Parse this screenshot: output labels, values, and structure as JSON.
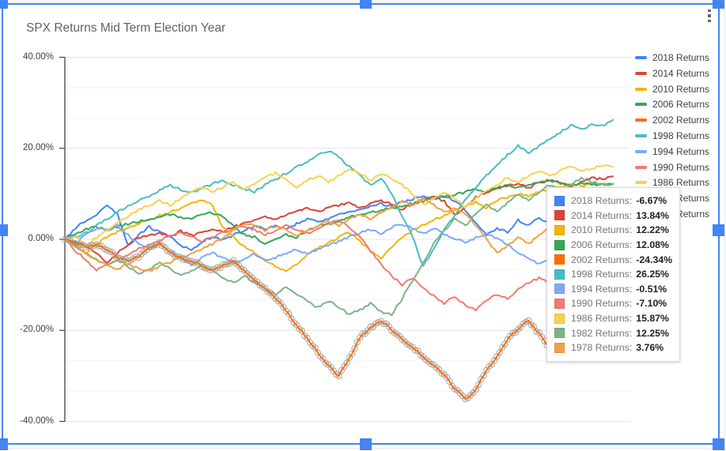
{
  "chart": {
    "title": "SPX Returns Mid Term Election Year"
  },
  "axis": {
    "ticks": [
      {
        "value": 40,
        "label": "40.00%"
      },
      {
        "value": 20,
        "label": "20.00%"
      },
      {
        "value": 0,
        "label": "0.00%"
      },
      {
        "value": -20,
        "label": "-20.00%"
      },
      {
        "value": -40,
        "label": "-40.00%"
      }
    ],
    "minor_values": [
      33.33,
      26.67,
      13.33,
      6.67,
      -6.67,
      -13.33,
      -26.67,
      -33.33
    ]
  },
  "tooltip": {
    "rows": [
      {
        "label": "2018 Returns:",
        "value": "-6.67%"
      },
      {
        "label": "2014 Returns:",
        "value": "13.84%"
      },
      {
        "label": "2010 Returns:",
        "value": "12.22%"
      },
      {
        "label": "2006 Returns:",
        "value": "12.08%"
      },
      {
        "label": "2002 Returns:",
        "value": "-24.34%"
      },
      {
        "label": "1998 Returns:",
        "value": "26.25%"
      },
      {
        "label": "1994 Returns:",
        "value": "-0.51%"
      },
      {
        "label": "1990 Returns:",
        "value": "-7.10%"
      },
      {
        "label": "1986 Returns:",
        "value": "15.87%"
      },
      {
        "label": "1982 Returns:",
        "value": "12.25%"
      },
      {
        "label": "1978 Returns:",
        "value": "3.76%"
      }
    ]
  },
  "selection": {
    "color": "#4285f4"
  },
  "colors": {
    "grid_major": "#e4e4e4",
    "grid_minor": "#f4f4f4",
    "axis_line": "#424242",
    "hover_marker": "#9aa0a6"
  },
  "chart_data": {
    "type": "line",
    "title": "SPX Returns Mid Term Election Year",
    "xlabel": "",
    "ylabel": "",
    "x_unit": "week of year (0 = first trading day, 52 = year end)",
    "ylim": [
      -40,
      40
    ],
    "y_tick_format": "percent",
    "grid": true,
    "legend_position": "right",
    "hovered_series": "2002 Returns",
    "hover_note": "hovered series shows gray open-circle markers on every data point",
    "series": [
      {
        "name": "2018 Returns",
        "year": "2018",
        "color": "#4285F4",
        "final": -6.67,
        "values": [
          0,
          2.5,
          4.2,
          5.5,
          7.4,
          5.5,
          -1.5,
          1,
          2.8,
          1.5,
          0.5,
          -1.2,
          -2.5,
          -0.5,
          0.5,
          -0.2,
          1,
          1.8,
          2.9,
          2.3,
          3.1,
          2,
          3.5,
          4.5,
          3.8,
          4.5,
          5.3,
          5.8,
          6.5,
          7.2,
          7.8,
          7.3,
          8.2,
          8.9,
          9.4,
          8.8,
          9.6,
          8.5,
          6.5,
          3.5,
          0.9,
          2.5,
          1.5,
          4.2,
          3,
          4.8,
          3.5,
          1,
          -1.5,
          -5.5,
          -10.5,
          -9,
          -6.67
        ]
      },
      {
        "name": "2014 Returns",
        "year": "2014",
        "color": "#DB4437",
        "final": 13.84,
        "values": [
          0,
          -0.5,
          -1.5,
          -3,
          -5.2,
          -3,
          -1,
          0.5,
          1,
          1.4,
          0.6,
          1.8,
          0.8,
          1.5,
          2.4,
          1.8,
          2.8,
          3.5,
          4.2,
          5,
          4.4,
          5.5,
          6.2,
          7,
          6.1,
          7,
          7.5,
          8,
          7,
          7.8,
          8.5,
          7.7,
          6.5,
          7.8,
          8.8,
          9.4,
          8.3,
          5.5,
          7,
          9.3,
          10.3,
          11.2,
          11.8,
          12.3,
          11.2,
          12.5,
          13,
          12.4,
          11.5,
          12.8,
          13.5,
          13.2,
          13.84
        ]
      },
      {
        "name": "2010 Returns",
        "year": "2010",
        "color": "#F5B400",
        "final": 12.22,
        "values": [
          0,
          -1.5,
          -3.2,
          -1,
          0.5,
          1.5,
          2.5,
          3.5,
          4.3,
          5.2,
          6,
          6.8,
          7.8,
          8.6,
          7.5,
          2.5,
          0.5,
          -1.5,
          -3,
          -4.5,
          -6,
          -7.2,
          -5.5,
          -3.5,
          -2,
          -0.8,
          0.5,
          1.5,
          -0.5,
          -2.5,
          -4.2,
          -1.8,
          0.5,
          2,
          3.2,
          4.3,
          5.3,
          6.4,
          7.3,
          8.1,
          7,
          8.5,
          9.2,
          10,
          9.4,
          10.5,
          11,
          11.6,
          12,
          11.8,
          12.1,
          12,
          12.22
        ]
      },
      {
        "name": "2006 Returns",
        "year": "2006",
        "color": "#34A853",
        "final": 12.08,
        "values": [
          0,
          1.2,
          2.2,
          2.7,
          2,
          2.8,
          3.4,
          3.9,
          4.4,
          4.9,
          5.4,
          4.9,
          4.4,
          5.4,
          5.9,
          4.9,
          3,
          1,
          0.5,
          -1.2,
          0,
          1,
          0.5,
          2,
          2.9,
          3.4,
          3.9,
          4.9,
          5.4,
          5.9,
          6.4,
          6.9,
          7.4,
          7.9,
          8.4,
          8.9,
          9.4,
          9.9,
          10.4,
          10.9,
          10.4,
          11.4,
          11.9,
          11.4,
          11.9,
          12.4,
          12.9,
          12.4,
          11.9,
          12.2,
          12,
          12,
          12.08
        ]
      },
      {
        "name": "2002 Returns",
        "year": "2002",
        "color": "#FF6D01",
        "final": -24.34,
        "values": [
          0,
          -0.8,
          -1.8,
          -1.2,
          -2.2,
          -3.8,
          -4.8,
          -3.8,
          -1.8,
          -0.8,
          -2.8,
          -4.2,
          -4.8,
          -5.8,
          -6.8,
          -5.8,
          -4.8,
          -6.8,
          -8.8,
          -10.8,
          -12.8,
          -15.8,
          -18.8,
          -21.8,
          -24.8,
          -27.8,
          -30,
          -26,
          -21.5,
          -19.5,
          -17.8,
          -19.8,
          -21.8,
          -23.8,
          -25.8,
          -27.8,
          -29.8,
          -32.8,
          -35.2,
          -33,
          -28.8,
          -25.8,
          -21.8,
          -19.8,
          -17.8,
          -20.8,
          -23.8,
          -25.8,
          -24.8,
          -24.2,
          -23.8,
          -24.1,
          -24.34
        ]
      },
      {
        "name": "1998 Returns",
        "year": "1998",
        "color": "#46BDC6",
        "final": 26.25,
        "values": [
          0,
          -1,
          1,
          3,
          4.5,
          6,
          7.2,
          8.5,
          9.5,
          10.8,
          11.8,
          11,
          10.2,
          11.2,
          12.2,
          13,
          12,
          11,
          10.5,
          12,
          13.2,
          14.5,
          15.8,
          17,
          18.5,
          19.5,
          18,
          16,
          14,
          12,
          13.5,
          10,
          5,
          0.5,
          -6,
          -2,
          2,
          5.5,
          8.5,
          11.5,
          14,
          16.5,
          18.5,
          20.5,
          19,
          20.5,
          22,
          23.5,
          25,
          24,
          25.2,
          24.8,
          26.25
        ]
      },
      {
        "name": "1994 Returns",
        "year": "1994",
        "color": "#7BAAF7",
        "final": -0.51,
        "values": [
          0,
          0.5,
          1.5,
          2.4,
          2,
          3,
          1,
          -1,
          -2,
          -1,
          -2.5,
          -4.2,
          -5.5,
          -4,
          -3,
          -4,
          -5.2,
          -4.2,
          -3.2,
          -4.8,
          -4,
          -3,
          -2.2,
          -3.2,
          -2.4,
          -1.4,
          -0.4,
          0.6,
          1.4,
          2.2,
          1.2,
          2.6,
          3.4,
          2.4,
          1.4,
          2.4,
          1.2,
          0.2,
          -0.8,
          0.4,
          1.2,
          0.2,
          -1.2,
          -2.8,
          -4.2,
          -5.5,
          -4.5,
          -3.5,
          -2.5,
          -1.5,
          -1,
          -0.8,
          -0.51
        ]
      },
      {
        "name": "1990 Returns",
        "year": "1990",
        "color": "#F07B72",
        "final": -7.1,
        "values": [
          0,
          -2.5,
          -4.5,
          -6.8,
          -5.5,
          -4.5,
          -3.5,
          -2,
          -1,
          -0.2,
          0.8,
          1.5,
          0.5,
          -0.5,
          0.5,
          1.5,
          2.2,
          3,
          2,
          1,
          2,
          3.2,
          2.2,
          1.2,
          2.4,
          3.4,
          4.2,
          2.5,
          0.5,
          -2.5,
          -5.5,
          -8,
          -10,
          -8.5,
          -10.5,
          -12.5,
          -14,
          -12.5,
          -14.5,
          -15.5,
          -13.5,
          -12,
          -13,
          -11,
          -9.5,
          -8.5,
          -9.5,
          -8,
          -9,
          -7.5,
          -8,
          -7.5,
          -7.1
        ]
      },
      {
        "name": "1986 Returns",
        "year": "1986",
        "color": "#FCD04F",
        "final": 15.87,
        "values": [
          0,
          0.5,
          -1.5,
          0.5,
          2,
          3.5,
          5,
          6.5,
          7.5,
          8.5,
          7.5,
          9,
          10.5,
          11.5,
          10.5,
          11.5,
          12.5,
          11,
          12,
          13.5,
          14.5,
          13,
          11.5,
          13,
          14,
          12.5,
          14,
          15.5,
          14.5,
          13,
          14.5,
          13.5,
          12,
          10,
          7.5,
          9,
          10.5,
          9,
          7,
          9,
          10.5,
          12,
          13.5,
          12.5,
          14,
          15,
          14,
          15,
          16,
          15,
          15.5,
          16.2,
          15.87
        ]
      },
      {
        "name": "1982 Returns",
        "year": "1982",
        "color": "#7CB583",
        "final": 12.25,
        "values": [
          0,
          -1.5,
          -3,
          -4.5,
          -5.5,
          -4.5,
          -6,
          -7.5,
          -6.5,
          -5,
          -6.5,
          -8,
          -7,
          -5.5,
          -7,
          -8.5,
          -9.5,
          -8,
          -9.5,
          -11,
          -12,
          -10.5,
          -12,
          -13.5,
          -15,
          -13.5,
          -15,
          -16.5,
          -15.5,
          -14,
          -16,
          -16.5,
          -13,
          -9,
          -5,
          -1,
          2,
          4.5,
          3,
          5.5,
          7.5,
          6,
          8,
          10,
          8.5,
          10.5,
          12,
          10.5,
          12,
          13.5,
          12.5,
          12,
          12.25
        ]
      },
      {
        "name": "1978 Returns",
        "year": "1978",
        "color": "#F2A046",
        "final": 3.76,
        "values": [
          0,
          -1.5,
          -3,
          -4.5,
          -5.5,
          -6.5,
          -5.5,
          -6.5,
          -7,
          -6,
          -5,
          -4,
          -3,
          -2,
          -1,
          0.5,
          2,
          3.5,
          3,
          2,
          3,
          2,
          1,
          2,
          3,
          4,
          3,
          4.5,
          5.5,
          4.5,
          6,
          7,
          8.5,
          7.5,
          9,
          7.5,
          6,
          7,
          5.5,
          3,
          0,
          -3,
          -1.5,
          0.5,
          -1,
          1,
          2.5,
          1.5,
          3,
          4,
          3,
          3.5,
          3.76
        ]
      }
    ]
  }
}
